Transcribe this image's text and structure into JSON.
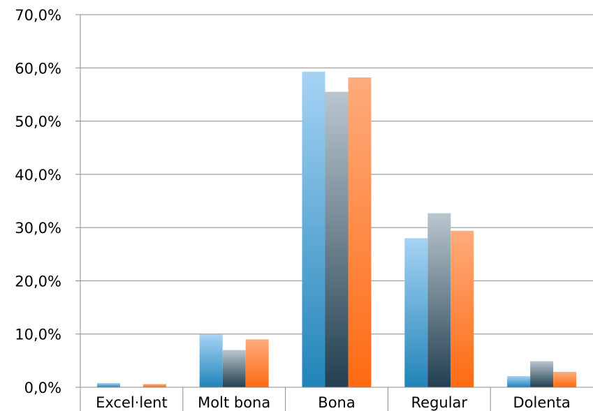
{
  "chart_data": {
    "type": "bar",
    "title": "",
    "xlabel": "",
    "ylabel": "",
    "ylim": [
      0,
      70
    ],
    "y_ticks": [
      "0,0%",
      "10,0%",
      "20,0%",
      "30,0%",
      "40,0%",
      "50,0%",
      "60,0%",
      "70,0%"
    ],
    "categories": [
      "Excel·lent",
      "Molt bona",
      "Bona",
      "Regular",
      "Dolenta"
    ],
    "grid": true,
    "legend": "none",
    "series": [
      {
        "values": [
          0.8,
          9.9,
          59.3,
          28.0,
          2.1
        ],
        "color_top": "#a6d3f5",
        "color_bottom": "#2184b8"
      },
      {
        "values": [
          0.0,
          7.0,
          55.5,
          32.7,
          4.9
        ],
        "color_top": "#b9c6cf",
        "color_bottom": "#233f50"
      },
      {
        "values": [
          0.6,
          9.0,
          58.2,
          29.4,
          2.9
        ],
        "color_top": "#fdac7c",
        "color_bottom": "#fe6a12"
      }
    ]
  }
}
